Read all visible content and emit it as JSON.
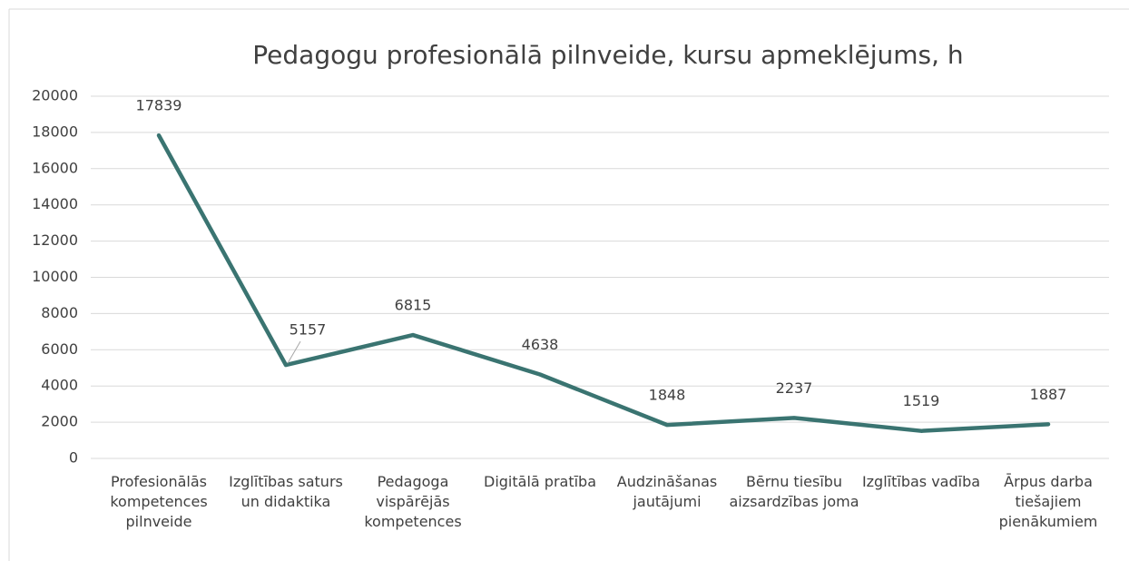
{
  "chart_data": {
    "type": "line",
    "title": "Pedagogu profesionālā pilnveide, kursu apmeklējums, h",
    "categories": [
      "Profesionālās kompetences pilnveide",
      "Izglītības saturs un didaktika",
      "Pedagoga vispārējās kompetences",
      "Digitālā pratība",
      "Audzināšanas jautājumi",
      "Bērnu tiesību aizsardzības joma",
      "Izglītības vadība",
      "Ārpus darba tiešajiem pienākumiem"
    ],
    "series": [
      {
        "color": "#3a7471",
        "values": [
          17839,
          5157,
          6815,
          4638,
          1848,
          2237,
          1519,
          1887
        ]
      }
    ],
    "ylim": [
      0,
      20000
    ],
    "yticks": [
      0,
      2000,
      4000,
      6000,
      8000,
      10000,
      12000,
      14000,
      16000,
      18000,
      20000
    ],
    "grid": true
  }
}
